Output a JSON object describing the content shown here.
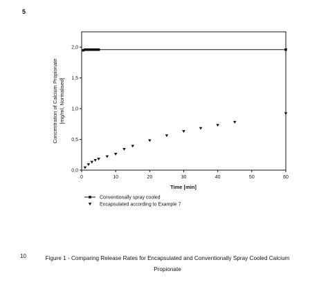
{
  "page": {
    "page_number": "5",
    "caption_line_number": "10",
    "caption": "Figure 1 - Comparing Release Rates for Encapsulated and Conventionally Spray Cooled Calcium Propionate"
  },
  "chart_data": {
    "type": "scatter",
    "title": "",
    "xlabel": "Time [min]",
    "ylabel": "Concentration of Calcium Propionate [mg/ml, Normalised]",
    "ylabel_lines": [
      "Concentration of Calcium Propionate",
      "[mg/ml, Normalised]"
    ],
    "xlim": [
      0,
      60
    ],
    "ylim": [
      0,
      2.25
    ],
    "x_ticks": [
      0,
      10,
      20,
      30,
      40,
      50,
      60
    ],
    "x_tick_labels": [
      "0",
      "10",
      "20",
      "30",
      "40",
      "50",
      "60"
    ],
    "y_ticks": [
      0,
      0.5,
      1.0,
      1.5,
      2.0
    ],
    "y_tick_labels": [
      "0,0",
      "0,5",
      "1,0",
      "1,5",
      "2,0"
    ],
    "grid": false,
    "legend_position": "bottom-left",
    "series": [
      {
        "name": "Conventionally spray cooled",
        "marker": "square",
        "line": true,
        "color": "#111111",
        "x": [
          0.5,
          1,
          1.5,
          2,
          2.5,
          3,
          3.5,
          4,
          4.5,
          5,
          60
        ],
        "y": [
          1.95,
          1.96,
          1.96,
          1.96,
          1.96,
          1.96,
          1.96,
          1.96,
          1.96,
          1.96,
          1.96
        ]
      },
      {
        "name": "Encapsulated according to Example 7",
        "marker": "triangle-down",
        "line": false,
        "color": "#111111",
        "x": [
          1,
          2,
          3,
          4,
          5,
          7.5,
          10,
          12.5,
          15,
          20,
          25,
          30,
          35,
          40,
          45,
          60
        ],
        "y": [
          0.04,
          0.09,
          0.13,
          0.16,
          0.18,
          0.22,
          0.26,
          0.34,
          0.39,
          0.48,
          0.56,
          0.63,
          0.68,
          0.73,
          0.78,
          0.92
        ]
      }
    ]
  }
}
